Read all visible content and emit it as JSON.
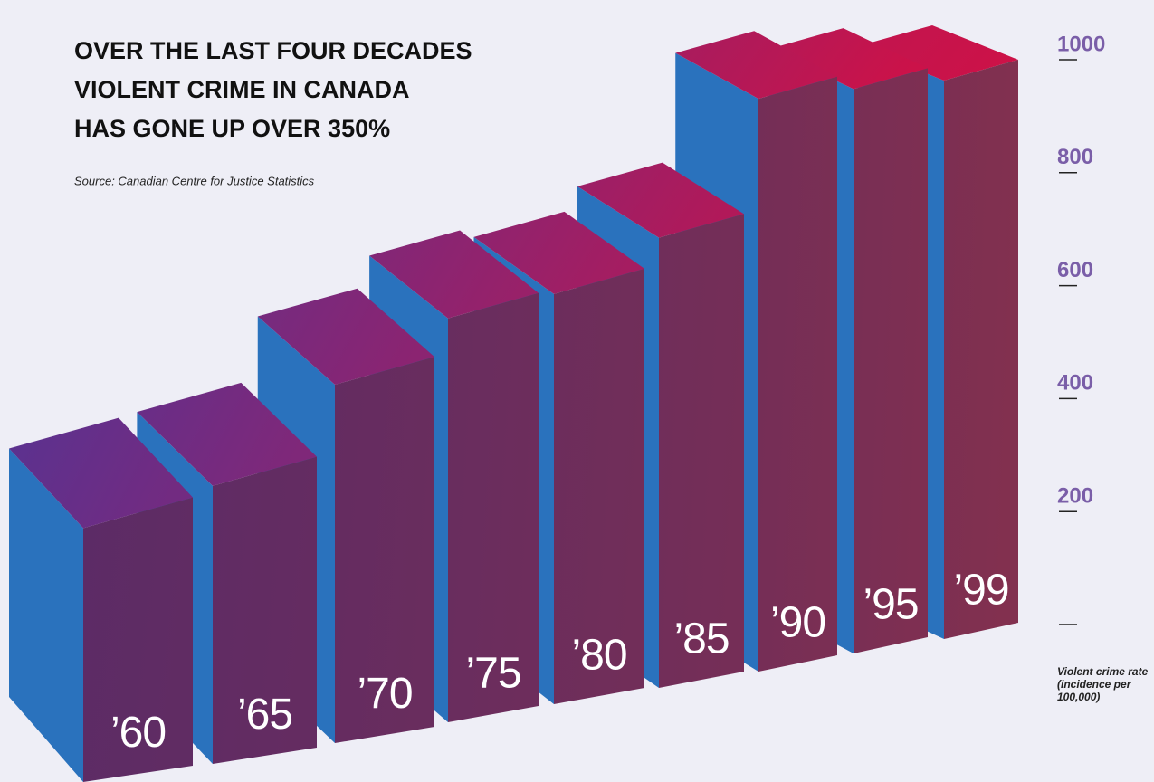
{
  "chart_data": {
    "type": "bar3d",
    "title": [
      "OVER THE LAST FOUR DECADES",
      "VIOLENT CRIME IN CANADA",
      "HAS GONE UP OVER 350%"
    ],
    "subtitle": "Source: Canadian Centre for Justice Statistics",
    "ylabel": [
      "Violent crime rate",
      "(incidence per",
      "100,000)"
    ],
    "categories": [
      "’60",
      "’65",
      "’70",
      "’75",
      "’80",
      "’85",
      "’90",
      "’95",
      "’99"
    ],
    "values": [
      225,
      297,
      474,
      587,
      630,
      727,
      970,
      985,
      1000
    ],
    "ylim": [
      0,
      1000
    ],
    "yticks": [
      200,
      400,
      600,
      800,
      1000
    ],
    "colors": {
      "front_start": "#5c2b66",
      "front_end": "#82304f",
      "top_start": "#5a3290",
      "top_end": "#cc1248",
      "side": "#2a72bd",
      "axis": "#7a5ea8"
    }
  }
}
